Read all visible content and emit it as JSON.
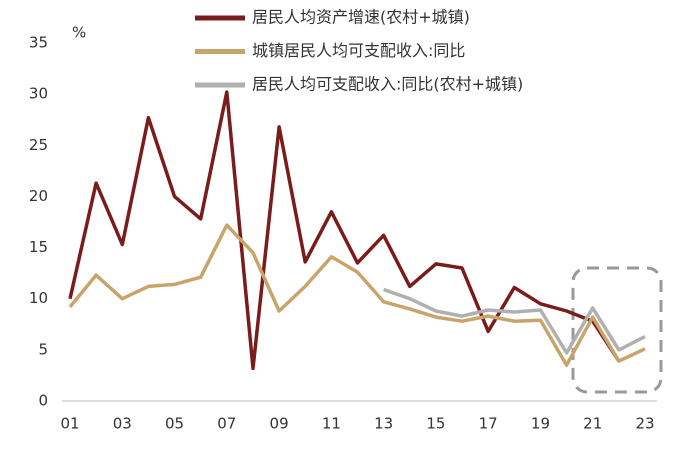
{
  "chart_data": {
    "type": "line",
    "y_unit": "%",
    "categories": [
      "01",
      null,
      "03",
      null,
      "05",
      null,
      "07",
      null,
      "09",
      null,
      "11",
      null,
      "13",
      null,
      "15",
      null,
      "17",
      null,
      "19",
      null,
      "21",
      null,
      "23"
    ],
    "series": [
      {
        "name": "居民人均资产增速(农村+城镇)",
        "color": "#7b1c1c",
        "values": [
          10,
          21.3,
          15.3,
          27.7,
          20,
          17.8,
          30.2,
          3.2,
          26.8,
          13.6,
          18.5,
          13.5,
          16.2,
          11.2,
          13.4,
          13,
          6.8,
          11.1,
          9.5,
          8.8,
          7.8,
          3.9,
          null
        ]
      },
      {
        "name": "城镇居民人均可支配收入:同比",
        "color": "#c9a46a",
        "values": [
          9.2,
          12.3,
          10,
          11.2,
          11.4,
          12.1,
          17.2,
          14.5,
          8.8,
          11.2,
          14.1,
          12.6,
          9.7,
          9,
          8.2,
          7.8,
          8.3,
          7.8,
          7.9,
          3.5,
          8.2,
          3.9,
          5.1
        ]
      },
      {
        "name": "居民人均可支配收入:同比(农村+城镇)",
        "color": "#b0b0b0",
        "values": [
          null,
          null,
          null,
          null,
          null,
          null,
          null,
          null,
          null,
          null,
          null,
          null,
          10.9,
          10,
          8.8,
          8.3,
          8.9,
          8.7,
          8.9,
          4.7,
          9.1,
          5,
          6.3
        ]
      }
    ],
    "ylim": [
      0,
      35
    ],
    "yticks": [
      0,
      5,
      10,
      15,
      20,
      25,
      30,
      35
    ],
    "grid": false
  }
}
